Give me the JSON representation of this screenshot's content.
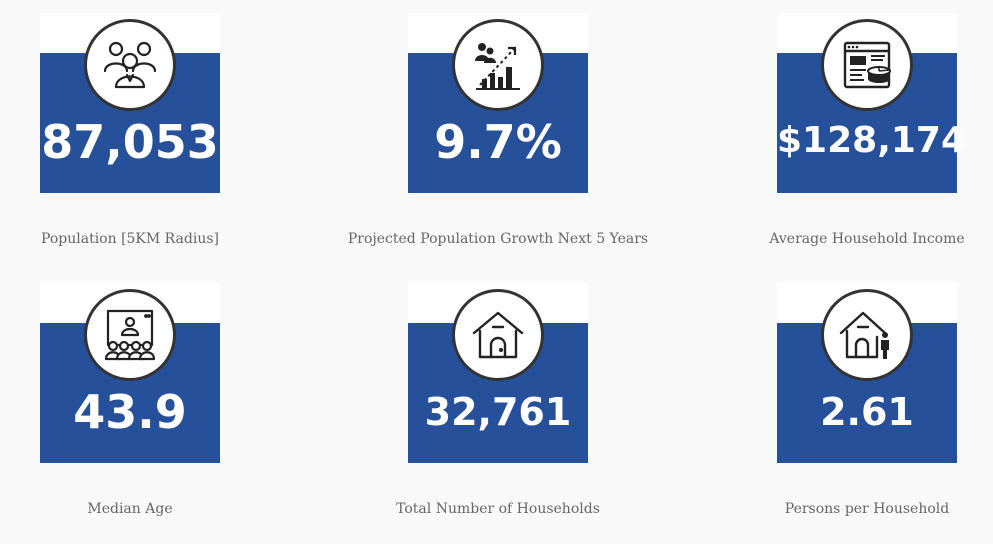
{
  "stats": [
    {
      "value": "87,053",
      "label": "Population [5KM Radius]",
      "icon": "people-group-icon"
    },
    {
      "value": "9.7%",
      "label": "Projected Population Growth Next 5 Years",
      "icon": "growth-chart-icon"
    },
    {
      "value": "$128,174",
      "label": "Average Household Income",
      "icon": "income-report-icon"
    },
    {
      "value": "43.9",
      "label": "Median Age",
      "icon": "audience-presentation-icon"
    },
    {
      "value": "32,761",
      "label": "Total Number of Households",
      "icon": "house-icon"
    },
    {
      "value": "2.61",
      "label": "Persons per Household",
      "icon": "house-person-icon"
    }
  ],
  "colors": {
    "card_blue": "#27509b",
    "background": "#f9f9f9",
    "label_text": "#666666",
    "icon_stroke": "#222222"
  }
}
